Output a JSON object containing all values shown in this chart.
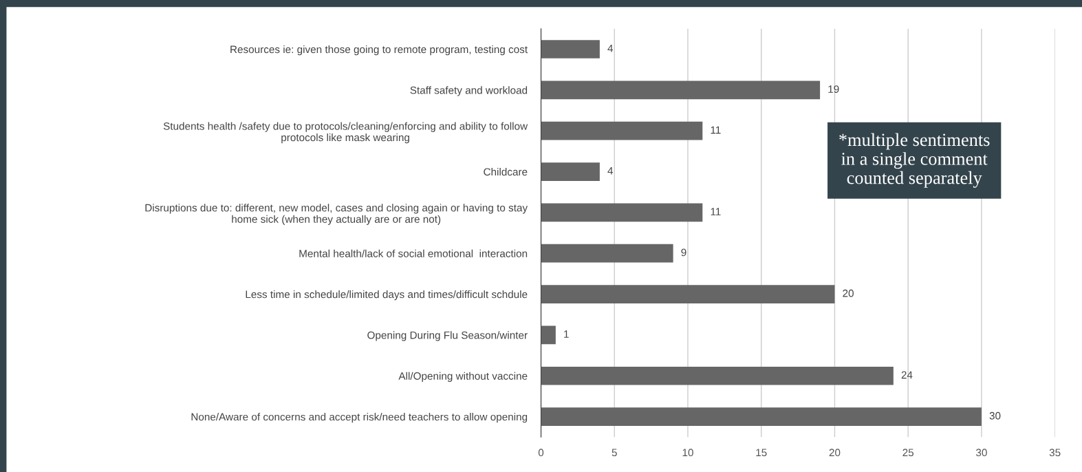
{
  "chart_data": {
    "type": "bar",
    "orientation": "horizontal",
    "categories": [
      "Resources ie: given those going to remote program, testing cost",
      "Staff safety and workload",
      "Students health /safety due to protocols/cleaning/enforcing and ability to follow\nprotocols like mask wearing",
      "Childcare",
      "Disruptions due to: different, new model, cases and closing again or having to stay\nhome sick (when they actually are or are not)",
      "Mental health/lack of social emotional  interaction",
      "Less time in schedule/limited days and times/difficult schdule",
      "Opening During Flu Season/winter",
      "All/Opening without vaccine",
      "None/Aware of concerns and accept risk/need teachers to allow opening"
    ],
    "values": [
      4,
      19,
      11,
      4,
      11,
      9,
      20,
      1,
      24,
      30
    ],
    "color": "#666666",
    "xlim": [
      0,
      35
    ],
    "xticks": [
      0,
      5,
      10,
      15,
      20,
      25,
      30,
      35
    ],
    "grid": "x",
    "data_labels": true,
    "annotations": [
      "*multiple sentiments\nin a single comment\ncounted separately"
    ]
  }
}
